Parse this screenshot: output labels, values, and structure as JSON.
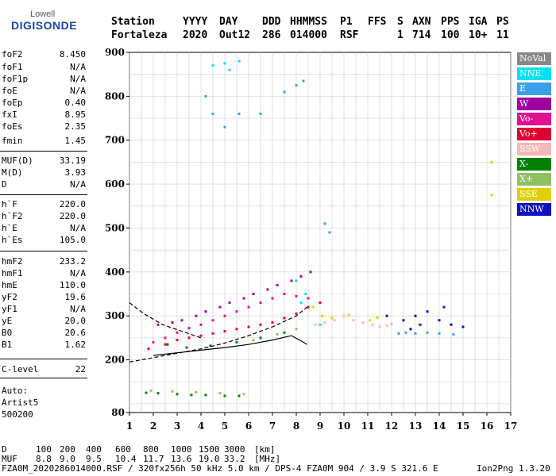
{
  "logo": {
    "top": "Lowell",
    "bottom": "DIGISONDE"
  },
  "header": {
    "labels": [
      "Station",
      "YYYY",
      "DAY",
      "DDD",
      "HHMMSS",
      "P1",
      "FFS",
      "S",
      "AXN",
      "PPS",
      "IGA",
      "PS"
    ],
    "values": [
      "Fortaleza",
      "2020",
      "Out12",
      "286",
      "014000",
      "RSF",
      "",
      "1",
      "714",
      "100",
      "10+",
      "11"
    ]
  },
  "params": [
    {
      "name": "foF2",
      "value": "8.450"
    },
    {
      "name": "foF1",
      "value": "N/A"
    },
    {
      "name": "foF1p",
      "value": "N/A"
    },
    {
      "name": "foE",
      "value": "N/A"
    },
    {
      "name": "foEp",
      "value": "0.40"
    },
    {
      "name": "fxI",
      "value": "8.95"
    },
    {
      "name": "foEs",
      "value": "2.35"
    },
    {
      "name": "fmin",
      "value": "1.45"
    },
    {
      "name": "MUF(D)",
      "value": "33.19"
    },
    {
      "name": "M(D)",
      "value": "3.93"
    },
    {
      "name": "D",
      "value": "N/A"
    },
    {
      "name": "h`F",
      "value": "220.0"
    },
    {
      "name": "h`F2",
      "value": "220.0"
    },
    {
      "name": "h`E",
      "value": "N/A"
    },
    {
      "name": "h`Es",
      "value": "105.0"
    },
    {
      "name": "hmF2",
      "value": "233.2"
    },
    {
      "name": "hmF1",
      "value": "N/A"
    },
    {
      "name": "hmE",
      "value": "110.0"
    },
    {
      "name": "yF2",
      "value": "19.6"
    },
    {
      "name": "yF1",
      "value": "N/A"
    },
    {
      "name": "yE",
      "value": "20.0"
    },
    {
      "name": "B0",
      "value": "20.6"
    },
    {
      "name": "B1",
      "value": "1.62"
    },
    {
      "name": "C-level",
      "value": "22"
    }
  ],
  "auto": {
    "line1": "Auto:",
    "line2": "Artist5",
    "line3": "500200"
  },
  "footer": {
    "d_label": "D",
    "d_values": [
      "100",
      "200",
      "400",
      "600",
      "800",
      "1000",
      "1500",
      "3000"
    ],
    "d_unit": "[km]",
    "muf_label": "MUF",
    "muf_values": [
      "8.8",
      "9.0",
      "9.5",
      "10.4",
      "11.7",
      "13.6",
      "19.0",
      "33.2"
    ],
    "muf_unit": "[MHz]",
    "info": "FZA0M_2020286014000.RSF / 320fx256h 50 kHz 5.0 km / DPS-4 FZA0M 904 / 3.9 S 321.6 E",
    "software": "Ion2Png 1.3.20"
  },
  "legend": [
    {
      "label": "NoVal",
      "color": "#888888"
    },
    {
      "label": "NNE",
      "color": "#00e0f0"
    },
    {
      "label": "E",
      "color": "#3aa0e8"
    },
    {
      "label": "W",
      "color": "#a000a0"
    },
    {
      "label": "Vo-",
      "color": "#e01090"
    },
    {
      "label": "Vo+",
      "color": "#e00030"
    },
    {
      "label": "SSW",
      "color": "#f8b8b8"
    },
    {
      "label": "X-",
      "color": "#008000"
    },
    {
      "label": "X+",
      "color": "#90c060"
    },
    {
      "label": "SSE",
      "color": "#e0d000"
    },
    {
      "label": "NNW",
      "color": "#1010c0"
    }
  ],
  "chart_data": {
    "type": "scatter",
    "title": "",
    "xlabel": "",
    "ylabel": "",
    "xlim": [
      1,
      17
    ],
    "ylim": [
      80,
      900
    ],
    "x_ticks": [
      1,
      2,
      3,
      4,
      5,
      6,
      7,
      8,
      9,
      10,
      11,
      12,
      13,
      14,
      15,
      16,
      17
    ],
    "y_ticks": [
      80,
      200,
      300,
      400,
      500,
      600,
      700,
      800,
      900
    ],
    "grid": true,
    "series": [
      {
        "color": "#e00030",
        "points": [
          [
            1.8,
            225
          ],
          [
            2.5,
            235
          ],
          [
            3.0,
            245
          ],
          [
            3.5,
            250
          ],
          [
            4.0,
            255
          ],
          [
            4.5,
            260
          ],
          [
            5.0,
            265
          ],
          [
            5.5,
            270
          ],
          [
            6.0,
            275
          ],
          [
            6.5,
            280
          ],
          [
            7.0,
            285
          ],
          [
            7.5,
            295
          ],
          [
            8.0,
            305
          ],
          [
            8.5,
            320
          ],
          [
            9.0,
            330
          ]
        ]
      },
      {
        "color": "#e01090",
        "points": [
          [
            2.0,
            240
          ],
          [
            2.5,
            250
          ],
          [
            3.0,
            262
          ],
          [
            3.5,
            272
          ],
          [
            4.0,
            280
          ],
          [
            4.5,
            290
          ],
          [
            5.0,
            300
          ],
          [
            5.5,
            310
          ],
          [
            6.0,
            320
          ],
          [
            6.5,
            330
          ],
          [
            7.0,
            340
          ],
          [
            7.5,
            350
          ],
          [
            8.0,
            345
          ],
          [
            8.5,
            340
          ]
        ]
      },
      {
        "color": "#a000a0",
        "points": [
          [
            2.2,
            280
          ],
          [
            2.8,
            285
          ],
          [
            3.2,
            290
          ],
          [
            3.8,
            300
          ],
          [
            4.2,
            310
          ],
          [
            4.8,
            320
          ],
          [
            5.2,
            330
          ],
          [
            5.8,
            340
          ],
          [
            6.2,
            350
          ],
          [
            6.8,
            360
          ],
          [
            7.2,
            370
          ],
          [
            7.8,
            380
          ],
          [
            8.2,
            390
          ],
          [
            8.6,
            400
          ]
        ]
      },
      {
        "color": "#f8b8b8",
        "points": [
          [
            8.8,
            280
          ],
          [
            9.2,
            285
          ],
          [
            9.6,
            290
          ],
          [
            10.0,
            300
          ],
          [
            10.4,
            290
          ],
          [
            10.8,
            285
          ],
          [
            11.2,
            280
          ],
          [
            11.5,
            275
          ],
          [
            11.8,
            278
          ],
          [
            12.0,
            282
          ]
        ]
      },
      {
        "color": "#1010c0",
        "points": [
          [
            12.5,
            290
          ],
          [
            13.0,
            300
          ],
          [
            13.5,
            310
          ],
          [
            14.0,
            290
          ],
          [
            14.5,
            280
          ],
          [
            15.0,
            275
          ],
          [
            11.8,
            300
          ],
          [
            13.2,
            280
          ],
          [
            14.2,
            320
          ],
          [
            12.8,
            270
          ]
        ]
      },
      {
        "color": "#3aa0e8",
        "points": [
          [
            12.3,
            260
          ],
          [
            12.6,
            262
          ],
          [
            13.0,
            260
          ],
          [
            13.5,
            262
          ],
          [
            14.0,
            260
          ],
          [
            14.6,
            258
          ],
          [
            4.2,
            800
          ],
          [
            4.5,
            760
          ],
          [
            5.0,
            730
          ],
          [
            5.6,
            760
          ],
          [
            6.5,
            760
          ],
          [
            7.5,
            810
          ],
          [
            8.0,
            825
          ],
          [
            8.3,
            835
          ],
          [
            9.2,
            510
          ],
          [
            9.4,
            490
          ]
        ]
      },
      {
        "color": "#00e0f0",
        "points": [
          [
            4.5,
            870
          ],
          [
            5.0,
            875
          ],
          [
            5.6,
            880
          ],
          [
            5.2,
            860
          ],
          [
            8.0,
            380
          ],
          [
            8.4,
            350
          ],
          [
            8.2,
            330
          ],
          [
            9.0,
            280
          ]
        ]
      },
      {
        "color": "#008000",
        "points": [
          [
            1.7,
            125
          ],
          [
            2.2,
            124
          ],
          [
            3.0,
            122
          ],
          [
            3.6,
            120
          ],
          [
            4.2,
            120
          ],
          [
            5.0,
            118
          ],
          [
            5.6,
            118
          ],
          [
            2.6,
            235
          ],
          [
            3.4,
            228
          ],
          [
            4.4,
            232
          ],
          [
            5.5,
            240
          ],
          [
            6.5,
            250
          ],
          [
            7.5,
            262
          ]
        ]
      },
      {
        "color": "#90c060",
        "points": [
          [
            1.9,
            130
          ],
          [
            2.8,
            128
          ],
          [
            3.8,
            126
          ],
          [
            4.8,
            124
          ],
          [
            5.8,
            122
          ],
          [
            6.2,
            245
          ],
          [
            7.2,
            258
          ],
          [
            8.0,
            270
          ]
        ]
      },
      {
        "color": "#e0d000",
        "points": [
          [
            9.1,
            300
          ],
          [
            9.5,
            295
          ],
          [
            10.2,
            302
          ],
          [
            11.1,
            290
          ],
          [
            11.4,
            296
          ],
          [
            16.2,
            575
          ],
          [
            16.2,
            650
          ],
          [
            8.7,
            320
          ]
        ]
      }
    ],
    "trace_lines": [
      {
        "style": "solid",
        "points": [
          [
            2.0,
            210
          ],
          [
            3.0,
            216
          ],
          [
            4.0,
            222
          ],
          [
            5.0,
            228
          ],
          [
            6.0,
            235
          ],
          [
            7.0,
            245
          ],
          [
            7.8,
            255
          ],
          [
            8.3,
            240
          ],
          [
            8.45,
            235
          ]
        ]
      },
      {
        "style": "dashed",
        "points": [
          [
            1.0,
            195
          ],
          [
            2.0,
            205
          ],
          [
            3.0,
            215
          ],
          [
            4.0,
            225
          ],
          [
            5.0,
            238
          ],
          [
            6.0,
            255
          ],
          [
            7.0,
            275
          ],
          [
            8.0,
            300
          ],
          [
            8.45,
            320
          ]
        ]
      },
      {
        "style": "dashed",
        "points": [
          [
            1.0,
            330
          ],
          [
            1.6,
            305
          ],
          [
            2.4,
            280
          ],
          [
            3.2,
            265
          ],
          [
            4.0,
            250
          ]
        ]
      }
    ]
  }
}
